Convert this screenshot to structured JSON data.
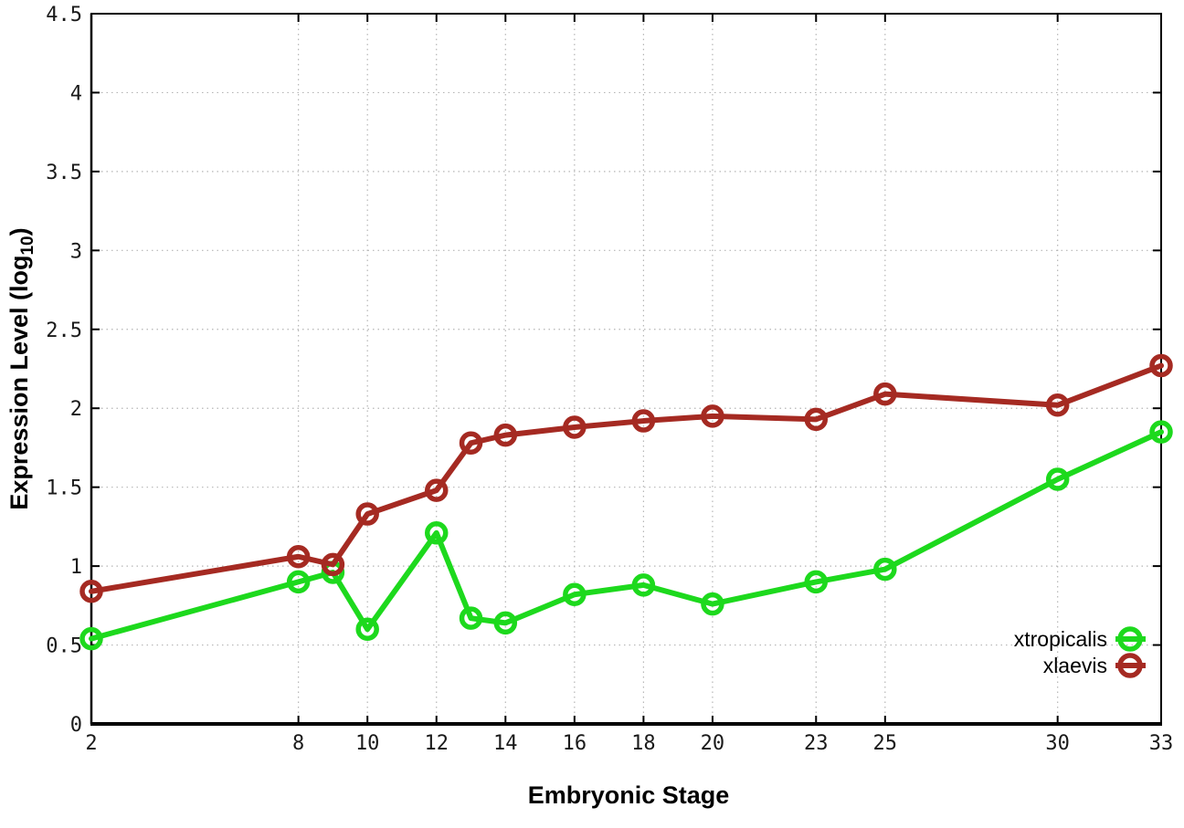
{
  "chart_data": {
    "type": "line",
    "title": "",
    "xlabel": "Embryonic Stage",
    "ylabel": "Expression Level (log10)",
    "ylabel_parts": {
      "pre": "Expression Level (log",
      "sub": "10",
      "post": ")"
    },
    "xlim": [
      2,
      33
    ],
    "ylim": [
      0,
      4.5
    ],
    "grid": true,
    "grid_style": "dotted",
    "legend_position": "bottom-right-inside",
    "xticks": [
      2,
      8,
      10,
      12,
      14,
      16,
      18,
      20,
      23,
      25,
      30,
      33
    ],
    "xtick_labels": [
      "2",
      "8",
      "10",
      "12",
      "14",
      "16",
      "18",
      "20",
      "23",
      "25",
      "30",
      "33"
    ],
    "yticks": [
      0,
      0.5,
      1,
      1.5,
      2,
      2.5,
      3,
      3.5,
      4,
      4.5
    ],
    "ytick_labels": [
      "0",
      "0.5",
      "1",
      "1.5",
      "2",
      "2.5",
      "3",
      "3.5",
      "4",
      "4.5"
    ],
    "x": [
      2,
      8,
      9,
      10,
      12,
      13,
      14,
      16,
      18,
      20,
      23,
      25,
      30,
      33
    ],
    "series": [
      {
        "name": "xtropicalis",
        "color": "#1dd91d",
        "marker": "open-circle",
        "values": [
          0.54,
          0.9,
          0.96,
          0.6,
          1.21,
          0.67,
          0.64,
          0.82,
          0.88,
          0.76,
          0.9,
          0.98,
          1.55,
          1.85
        ]
      },
      {
        "name": "xlaevis",
        "color": "#a52a22",
        "marker": "open-circle",
        "values": [
          0.84,
          1.06,
          1.01,
          1.33,
          1.48,
          1.78,
          1.83,
          1.88,
          1.92,
          1.95,
          1.93,
          2.09,
          2.02,
          2.27
        ]
      }
    ],
    "colors": {
      "axis": "#000000",
      "grid": "#b5b5b5",
      "background": "#ffffff"
    }
  }
}
